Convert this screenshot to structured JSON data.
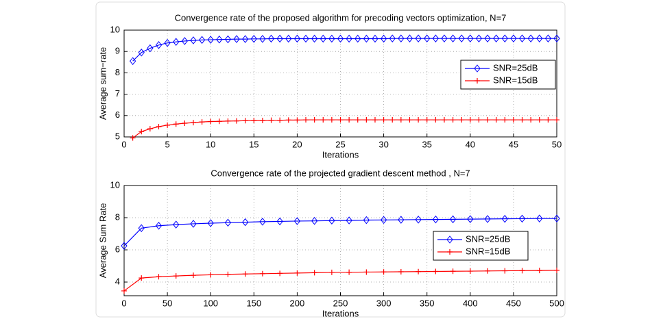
{
  "chart_data": [
    {
      "type": "line",
      "title": "Convergence rate of the proposed algorithm for precoding vectors optimization, N=7",
      "x_label": "Iterations",
      "y_label": "Average sum−rate",
      "x": [
        1,
        2,
        3,
        4,
        5,
        6,
        7,
        8,
        9,
        10,
        11,
        12,
        13,
        14,
        15,
        16,
        17,
        18,
        19,
        20,
        21,
        22,
        23,
        24,
        25,
        26,
        27,
        28,
        29,
        30,
        31,
        32,
        33,
        34,
        35,
        36,
        37,
        38,
        39,
        40,
        41,
        42,
        43,
        44,
        45,
        46,
        47,
        48,
        49,
        50
      ],
      "series": [
        {
          "name": "SNR=25dB",
          "color": "#0000ff",
          "marker": "diamond",
          "values": [
            8.55,
            8.95,
            9.15,
            9.3,
            9.4,
            9.45,
            9.49,
            9.52,
            9.54,
            9.55,
            9.56,
            9.57,
            9.58,
            9.58,
            9.59,
            9.59,
            9.6,
            9.6,
            9.6,
            9.6,
            9.6,
            9.6,
            9.6,
            9.6,
            9.6,
            9.6,
            9.6,
            9.6,
            9.6,
            9.6,
            9.61,
            9.61,
            9.61,
            9.61,
            9.61,
            9.61,
            9.61,
            9.61,
            9.61,
            9.61,
            9.61,
            9.61,
            9.61,
            9.61,
            9.61,
            9.61,
            9.61,
            9.61,
            9.61,
            9.61
          ]
        },
        {
          "name": "SNR=15dB",
          "color": "#ff0000",
          "marker": "plus",
          "values": [
            4.95,
            5.25,
            5.38,
            5.48,
            5.55,
            5.6,
            5.64,
            5.67,
            5.7,
            5.72,
            5.73,
            5.74,
            5.75,
            5.76,
            5.77,
            5.77,
            5.78,
            5.78,
            5.79,
            5.79,
            5.8,
            5.8,
            5.8,
            5.8,
            5.8,
            5.8,
            5.8,
            5.8,
            5.8,
            5.8,
            5.8,
            5.8,
            5.8,
            5.8,
            5.8,
            5.8,
            5.8,
            5.8,
            5.8,
            5.8,
            5.8,
            5.8,
            5.8,
            5.8,
            5.8,
            5.8,
            5.8,
            5.8,
            5.8,
            5.8
          ]
        }
      ],
      "xlim": [
        0,
        50
      ],
      "xticks": [
        0,
        5,
        10,
        15,
        20,
        25,
        30,
        35,
        40,
        45,
        50
      ],
      "ylim": [
        5,
        10
      ],
      "yticks": [
        5,
        6,
        7,
        8,
        9,
        10
      ],
      "grid": true,
      "legend": "right"
    },
    {
      "type": "line",
      "title": "Convergence rate of the projected gradient descent method , N=7",
      "x_label": "Iterations",
      "y_label": "Average Sum Rate",
      "x": [
        0,
        20,
        40,
        60,
        80,
        100,
        120,
        140,
        160,
        180,
        200,
        220,
        240,
        260,
        280,
        300,
        320,
        340,
        360,
        380,
        400,
        420,
        440,
        460,
        480,
        500
      ],
      "series": [
        {
          "name": "SNR=25dB",
          "color": "#0000ff",
          "marker": "diamond",
          "values": [
            6.25,
            7.35,
            7.5,
            7.57,
            7.62,
            7.66,
            7.69,
            7.72,
            7.75,
            7.77,
            7.79,
            7.8,
            7.82,
            7.83,
            7.85,
            7.86,
            7.87,
            7.88,
            7.89,
            7.9,
            7.91,
            7.92,
            7.93,
            7.94,
            7.95,
            7.95
          ]
        },
        {
          "name": "SNR=15dB",
          "color": "#ff0000",
          "marker": "plus",
          "values": [
            3.45,
            4.25,
            4.33,
            4.38,
            4.42,
            4.45,
            4.48,
            4.5,
            4.52,
            4.54,
            4.56,
            4.58,
            4.6,
            4.61,
            4.62,
            4.63,
            4.64,
            4.65,
            4.66,
            4.67,
            4.68,
            4.69,
            4.7,
            4.71,
            4.72,
            4.73
          ]
        }
      ],
      "xlim": [
        0,
        500
      ],
      "xticks": [
        0,
        50,
        100,
        150,
        200,
        250,
        300,
        350,
        400,
        450,
        500
      ],
      "ylim": [
        3.15,
        10
      ],
      "yticks": [
        4,
        6,
        8,
        10
      ],
      "grid": true,
      "legend": "right"
    }
  ]
}
